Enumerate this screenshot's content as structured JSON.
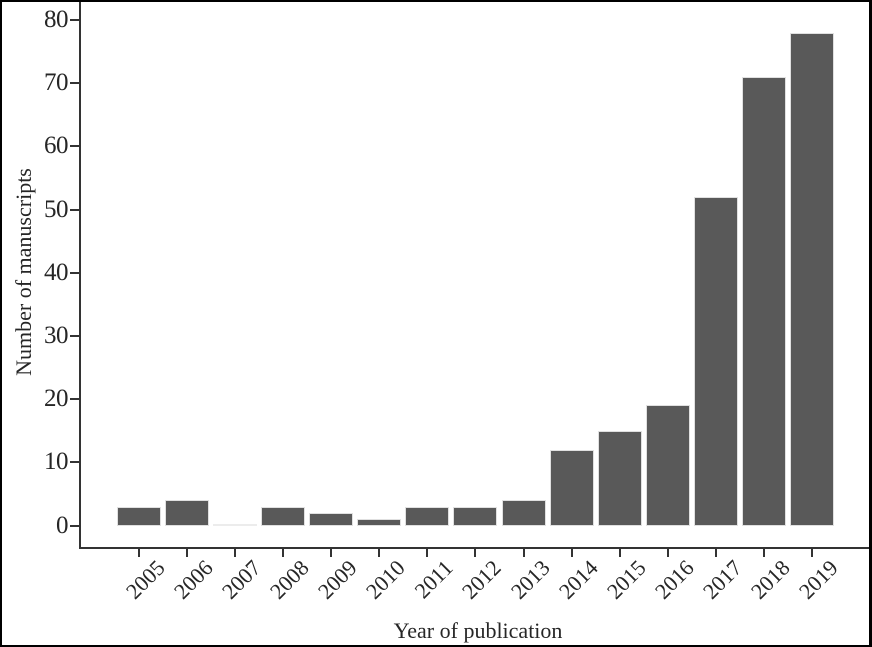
{
  "figure": {
    "background": "#ffffff",
    "frame_border_color": "#000000"
  },
  "chart_data": {
    "type": "bar",
    "categories": [
      "2005",
      "2006",
      "2007",
      "2008",
      "2009",
      "2010",
      "2011",
      "2012",
      "2013",
      "2014",
      "2015",
      "2016",
      "2017",
      "2018",
      "2019"
    ],
    "values": [
      3,
      4,
      0,
      3,
      2,
      1,
      3,
      3,
      4,
      12,
      15,
      19,
      52,
      71,
      78
    ],
    "title": "",
    "xlabel": "Year of publication",
    "ylabel": "Number of manuscripts",
    "ylim": [
      0,
      80
    ],
    "yticks": [
      0,
      10,
      20,
      30,
      40,
      50,
      60,
      70,
      80
    ],
    "grid": false,
    "legend": null,
    "x_tick_angle_deg": 45,
    "bar_color": "#595959",
    "bar_edge_color": "#e0e0e0",
    "zero_bar_line_color": "#ececec",
    "axis_color": "#333333",
    "text_color": "#262626"
  }
}
